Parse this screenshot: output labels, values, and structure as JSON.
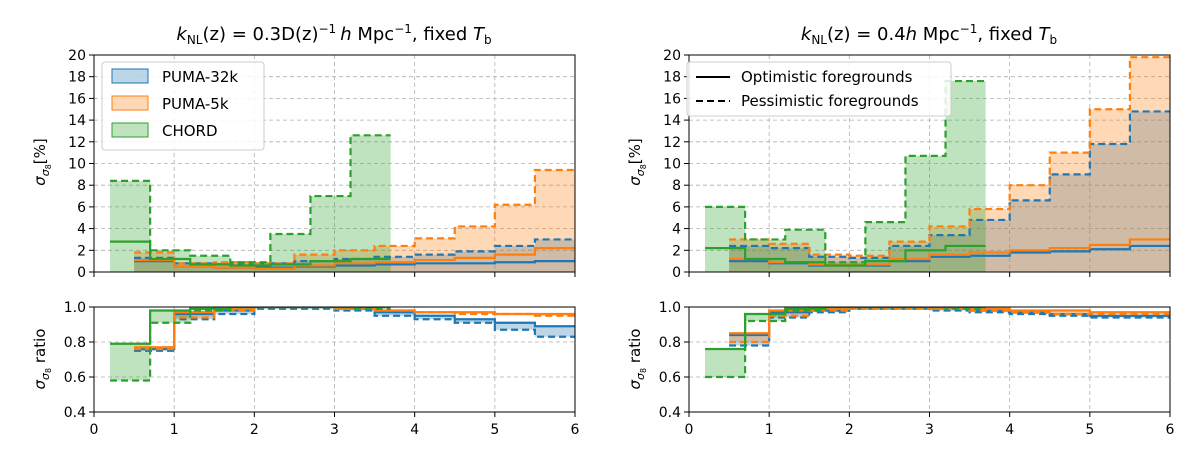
{
  "colors": {
    "puma32k": "#1f77b4",
    "puma5k": "#ff7f0e",
    "chord": "#2ca02c",
    "overlap_gray": "#7f7f7f"
  },
  "legend_left": [
    {
      "label": "PUMA-32k",
      "color": "#1f77b4"
    },
    {
      "label": "PUMA-5k",
      "color": "#ff7f0e"
    },
    {
      "label": "CHORD",
      "color": "#2ca02c"
    }
  ],
  "legend_right": [
    {
      "label": "Optimistic foregrounds",
      "style": "solid"
    },
    {
      "label": "Pessimistic foregrounds",
      "style": "dashed"
    }
  ],
  "chart_data": [
    {
      "type": "step",
      "panel": "top-left",
      "title_parts": {
        "k": "k",
        "nl": "NL",
        "body": "(z) = 0.3D(z)",
        "sup": "−1",
        "h": "h",
        "mpc": " Mpc",
        "fixed": ", fixed ",
        "T": "T",
        "b": "b"
      },
      "ylabel": {
        "sigma": "σ",
        "sub": "σ",
        "subsub": "8",
        "rest": "[%]"
      },
      "xlim": [
        0,
        6
      ],
      "ylim": [
        0,
        20
      ],
      "xticks": [
        0,
        1,
        2,
        3,
        4,
        5,
        6
      ],
      "yticks": [
        0,
        2,
        4,
        6,
        8,
        10,
        12,
        14,
        16,
        18,
        20
      ],
      "series": [
        {
          "name": "PUMA-32k",
          "color": "#1f77b4",
          "edges": [
            0.5,
            1.0,
            1.5,
            2.0,
            2.5,
            3.0,
            3.5,
            4.0,
            4.5,
            5.0,
            5.5,
            6.0
          ],
          "optimistic": [
            1.0,
            0.5,
            0.4,
            0.4,
            0.5,
            0.6,
            0.7,
            0.8,
            0.8,
            0.9,
            1.0
          ],
          "pessimistic": [
            1.3,
            0.8,
            0.7,
            0.8,
            1.0,
            1.2,
            1.4,
            1.6,
            1.9,
            2.4,
            3.0
          ]
        },
        {
          "name": "PUMA-5k",
          "color": "#ff7f0e",
          "edges": [
            0.5,
            1.0,
            1.5,
            2.0,
            2.5,
            3.0,
            3.5,
            4.0,
            4.5,
            5.0,
            5.5,
            6.0
          ],
          "optimistic": [
            1.1,
            0.5,
            0.4,
            0.3,
            0.6,
            0.8,
            0.9,
            1.1,
            1.3,
            1.6,
            2.2
          ],
          "pessimistic": [
            1.8,
            0.8,
            0.9,
            0.8,
            1.6,
            2.0,
            2.4,
            3.1,
            4.2,
            6.2,
            9.4
          ]
        },
        {
          "name": "CHORD",
          "color": "#2ca02c",
          "edges": [
            0.2,
            0.7,
            1.2,
            1.7,
            2.2,
            2.7,
            3.2,
            3.7
          ],
          "optimistic": [
            2.8,
            1.2,
            0.7,
            0.6,
            0.7,
            1.0,
            1.2
          ],
          "pessimistic": [
            8.4,
            2.0,
            1.5,
            0.9,
            3.5,
            7.0,
            12.6
          ]
        }
      ]
    },
    {
      "type": "step",
      "panel": "top-right",
      "title_parts": {
        "k": "k",
        "nl": "NL",
        "body": "(z) = 0.4",
        "sup": "−1",
        "h": "h",
        "mpc": " Mpc",
        "fixed": ", fixed ",
        "T": "T",
        "b": "b"
      },
      "ylabel": {
        "sigma": "σ",
        "sub": "σ",
        "subsub": "8",
        "rest": "[%]"
      },
      "xlim": [
        0,
        6
      ],
      "ylim": [
        0,
        20
      ],
      "xticks": [
        0,
        1,
        2,
        3,
        4,
        5,
        6
      ],
      "yticks": [
        0,
        2,
        4,
        6,
        8,
        10,
        12,
        14,
        16,
        18,
        20
      ],
      "series": [
        {
          "name": "PUMA-32k",
          "color": "#1f77b4",
          "edges": [
            0.5,
            1.0,
            1.5,
            2.0,
            2.5,
            3.0,
            3.5,
            4.0,
            4.5,
            5.0,
            5.5,
            6.0
          ],
          "optimistic": [
            1.0,
            0.8,
            0.6,
            0.6,
            1.0,
            1.4,
            1.5,
            1.8,
            1.9,
            2.1,
            2.4
          ],
          "pessimistic": [
            2.4,
            2.2,
            1.4,
            1.3,
            2.4,
            3.4,
            4.8,
            6.6,
            9.0,
            11.8,
            14.8
          ]
        },
        {
          "name": "PUMA-5k",
          "color": "#ff7f0e",
          "edges": [
            0.5,
            1.0,
            1.5,
            2.0,
            2.5,
            3.0,
            3.5,
            4.0,
            4.5,
            5.0,
            5.5,
            6.0
          ],
          "optimistic": [
            1.2,
            0.9,
            0.7,
            0.7,
            1.2,
            1.6,
            1.8,
            2.0,
            2.2,
            2.5,
            3.0
          ],
          "pessimistic": [
            3.0,
            2.6,
            1.6,
            1.5,
            2.8,
            4.2,
            5.8,
            8.0,
            11.0,
            15.0,
            19.8
          ]
        },
        {
          "name": "CHORD",
          "color": "#2ca02c",
          "edges": [
            0.2,
            0.7,
            1.2,
            1.7,
            2.2,
            2.7,
            3.2,
            3.7
          ],
          "optimistic": [
            2.2,
            1.2,
            0.9,
            0.6,
            1.0,
            2.0,
            2.4
          ],
          "pessimistic": [
            6.0,
            3.0,
            3.9,
            0.9,
            4.6,
            10.7,
            17.6
          ]
        }
      ]
    },
    {
      "type": "step",
      "panel": "bottom-left",
      "ylabel": {
        "sigma": "σ",
        "sub": "σ",
        "subsub": "8",
        "rest": " ratio"
      },
      "xlim": [
        0,
        6
      ],
      "ylim": [
        0.4,
        1.0
      ],
      "xticks": [
        0,
        1,
        2,
        3,
        4,
        5,
        6
      ],
      "xtick_labels": [
        "0",
        "1",
        "2",
        "3",
        "4",
        "5",
        "6"
      ],
      "yticks": [
        0.4,
        0.6,
        0.8,
        1.0
      ],
      "ytick_labels": [
        "0.4",
        "0.6",
        "0.8",
        "1.0"
      ],
      "series": [
        {
          "name": "PUMA-32k",
          "color": "#1f77b4",
          "edges": [
            0.5,
            1.0,
            1.5,
            2.0,
            2.5,
            3.0,
            3.5,
            4.0,
            4.5,
            5.0,
            5.5,
            6.0
          ],
          "optimistic": [
            0.76,
            0.96,
            0.98,
            1.0,
            1.0,
            0.99,
            0.97,
            0.95,
            0.93,
            0.91,
            0.89
          ],
          "pessimistic": [
            0.75,
            0.93,
            0.96,
            0.99,
            0.99,
            0.98,
            0.95,
            0.93,
            0.91,
            0.87,
            0.83
          ]
        },
        {
          "name": "PUMA-5k",
          "color": "#ff7f0e",
          "edges": [
            0.5,
            1.0,
            1.5,
            2.0,
            2.5,
            3.0,
            3.5,
            4.0,
            4.5,
            5.0,
            5.5,
            6.0
          ],
          "optimistic": [
            0.77,
            0.97,
            0.99,
            1.0,
            1.0,
            0.99,
            0.98,
            0.97,
            0.97,
            0.96,
            0.96
          ],
          "pessimistic": [
            0.76,
            0.94,
            0.98,
            1.0,
            1.0,
            0.99,
            0.98,
            0.97,
            0.96,
            0.96,
            0.95
          ]
        },
        {
          "name": "CHORD",
          "color": "#2ca02c",
          "edges": [
            0.2,
            0.7,
            1.2,
            1.7,
            2.2,
            2.7,
            3.2,
            3.7
          ],
          "optimistic": [
            0.79,
            0.98,
            0.99,
            1.0,
            1.0,
            1.0,
            1.0
          ],
          "pessimistic": [
            0.58,
            0.91,
            0.98,
            1.0,
            1.0,
            1.0,
            0.99
          ]
        }
      ]
    },
    {
      "type": "step",
      "panel": "bottom-right",
      "ylabel": {
        "sigma": "σ",
        "sub": "σ",
        "subsub": "8",
        "rest": " ratio"
      },
      "xlim": [
        0,
        6
      ],
      "ylim": [
        0.4,
        1.0
      ],
      "xticks": [
        0,
        1,
        2,
        3,
        4,
        5,
        6
      ],
      "xtick_labels": [
        "0",
        "1",
        "2",
        "3",
        "4",
        "5",
        "6"
      ],
      "yticks": [
        0.4,
        0.6,
        0.8,
        1.0
      ],
      "ytick_labels": [
        "0.4",
        "0.6",
        "0.8",
        "1.0"
      ],
      "series": [
        {
          "name": "PUMA-32k",
          "color": "#1f77b4",
          "edges": [
            0.5,
            1.0,
            1.5,
            2.0,
            2.5,
            3.0,
            3.5,
            4.0,
            4.5,
            5.0,
            5.5,
            6.0
          ],
          "optimistic": [
            0.84,
            0.97,
            0.98,
            1.0,
            1.0,
            0.99,
            0.98,
            0.97,
            0.96,
            0.95,
            0.95
          ],
          "pessimistic": [
            0.78,
            0.94,
            0.97,
            0.99,
            0.99,
            0.98,
            0.97,
            0.96,
            0.95,
            0.94,
            0.94
          ]
        },
        {
          "name": "PUMA-5k",
          "color": "#ff7f0e",
          "edges": [
            0.5,
            1.0,
            1.5,
            2.0,
            2.5,
            3.0,
            3.5,
            4.0,
            4.5,
            5.0,
            5.5,
            6.0
          ],
          "optimistic": [
            0.85,
            0.98,
            0.99,
            1.0,
            1.0,
            0.99,
            0.99,
            0.98,
            0.98,
            0.97,
            0.97
          ],
          "pessimistic": [
            0.8,
            0.95,
            0.98,
            0.99,
            0.99,
            0.99,
            0.98,
            0.97,
            0.96,
            0.96,
            0.96
          ]
        },
        {
          "name": "CHORD",
          "color": "#2ca02c",
          "edges": [
            0.2,
            0.7,
            1.2,
            1.7,
            2.2,
            2.7,
            3.2,
            3.7
          ],
          "optimistic": [
            0.76,
            0.96,
            0.99,
            1.0,
            1.0,
            1.0,
            1.0
          ],
          "pessimistic": [
            0.6,
            0.92,
            0.98,
            1.0,
            1.0,
            1.0,
            0.99
          ]
        }
      ]
    }
  ]
}
